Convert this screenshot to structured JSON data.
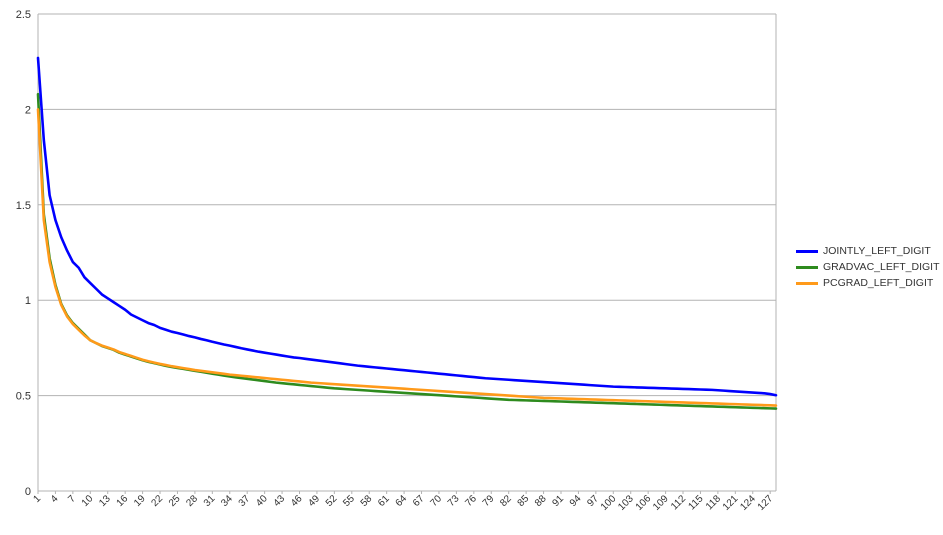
{
  "chart_data": {
    "type": "line",
    "title": "",
    "xlabel": "",
    "ylabel": "",
    "ylim": [
      0,
      2.5
    ],
    "yticks": [
      "0",
      "0.5",
      "1",
      "1.5",
      "2",
      "2.5"
    ],
    "x_start": 1,
    "x_end": 128,
    "x_tick_labels": [
      "1",
      "4",
      "7",
      "10",
      "13",
      "16",
      "19",
      "22",
      "25",
      "28",
      "31",
      "34",
      "37",
      "40",
      "43",
      "46",
      "49",
      "52",
      "55",
      "58",
      "61",
      "64",
      "67",
      "70",
      "73",
      "76",
      "79",
      "82",
      "85",
      "88",
      "91",
      "94",
      "97",
      "100",
      "103",
      "106",
      "109",
      "112",
      "115",
      "118",
      "121",
      "124",
      "127"
    ],
    "grid": true,
    "legend_position": "right",
    "series": [
      {
        "name": "JOINTLY_LEFT_DIGIT",
        "color": "#0000ff",
        "values": [
          2.27,
          1.84,
          1.55,
          1.42,
          1.33,
          1.26,
          1.2,
          1.17,
          1.12,
          1.09,
          1.06,
          1.03,
          1.01,
          0.99,
          0.97,
          0.95,
          0.925,
          0.91,
          0.895,
          0.88,
          0.87,
          0.855,
          0.845,
          0.835,
          0.828,
          0.82,
          0.812,
          0.805,
          0.797,
          0.79,
          0.782,
          0.775,
          0.768,
          0.762,
          0.755,
          0.748,
          0.742,
          0.736,
          0.73,
          0.725,
          0.72,
          0.715,
          0.71,
          0.705,
          0.7,
          0.697,
          0.693,
          0.689,
          0.685,
          0.681,
          0.677,
          0.673,
          0.669,
          0.665,
          0.661,
          0.657,
          0.654,
          0.651,
          0.648,
          0.645,
          0.642,
          0.639,
          0.636,
          0.633,
          0.63,
          0.627,
          0.624,
          0.621,
          0.618,
          0.615,
          0.612,
          0.609,
          0.606,
          0.603,
          0.6,
          0.597,
          0.594,
          0.591,
          0.589,
          0.587,
          0.585,
          0.583,
          0.581,
          0.579,
          0.577,
          0.575,
          0.573,
          0.571,
          0.569,
          0.567,
          0.565,
          0.563,
          0.561,
          0.559,
          0.557,
          0.555,
          0.553,
          0.551,
          0.549,
          0.547,
          0.546,
          0.545,
          0.544,
          0.543,
          0.542,
          0.541,
          0.54,
          0.539,
          0.538,
          0.537,
          0.536,
          0.535,
          0.534,
          0.533,
          0.532,
          0.531,
          0.53,
          0.528,
          0.526,
          0.524,
          0.522,
          0.52,
          0.518,
          0.516,
          0.514,
          0.512,
          0.508,
          0.502
        ]
      },
      {
        "name": "GRADVAC_LEFT_DIGIT",
        "color": "#2e8b1e",
        "values": [
          2.08,
          1.45,
          1.22,
          1.08,
          0.98,
          0.92,
          0.88,
          0.85,
          0.82,
          0.79,
          0.775,
          0.76,
          0.75,
          0.74,
          0.725,
          0.715,
          0.705,
          0.695,
          0.685,
          0.677,
          0.67,
          0.663,
          0.656,
          0.65,
          0.645,
          0.64,
          0.635,
          0.63,
          0.625,
          0.62,
          0.615,
          0.61,
          0.605,
          0.6,
          0.596,
          0.592,
          0.588,
          0.584,
          0.58,
          0.576,
          0.572,
          0.568,
          0.565,
          0.562,
          0.559,
          0.556,
          0.553,
          0.55,
          0.547,
          0.544,
          0.541,
          0.538,
          0.536,
          0.534,
          0.532,
          0.53,
          0.528,
          0.526,
          0.524,
          0.522,
          0.52,
          0.518,
          0.516,
          0.514,
          0.512,
          0.51,
          0.508,
          0.506,
          0.504,
          0.502,
          0.5,
          0.498,
          0.496,
          0.494,
          0.492,
          0.49,
          0.488,
          0.486,
          0.484,
          0.482,
          0.48,
          0.478,
          0.477,
          0.476,
          0.475,
          0.474,
          0.473,
          0.472,
          0.471,
          0.47,
          0.469,
          0.468,
          0.467,
          0.466,
          0.465,
          0.464,
          0.463,
          0.462,
          0.461,
          0.46,
          0.459,
          0.458,
          0.457,
          0.456,
          0.455,
          0.454,
          0.453,
          0.452,
          0.451,
          0.45,
          0.449,
          0.448,
          0.447,
          0.446,
          0.445,
          0.444,
          0.443,
          0.442,
          0.441,
          0.44,
          0.439,
          0.438,
          0.437,
          0.436,
          0.435,
          0.434,
          0.433,
          0.432
        ]
      },
      {
        "name": "PCGRAD_LEFT_DIGIT",
        "color": "#ff9a1a",
        "values": [
          2.0,
          1.42,
          1.2,
          1.07,
          0.975,
          0.915,
          0.875,
          0.845,
          0.815,
          0.79,
          0.775,
          0.762,
          0.752,
          0.742,
          0.728,
          0.718,
          0.708,
          0.698,
          0.688,
          0.68,
          0.673,
          0.666,
          0.66,
          0.654,
          0.649,
          0.644,
          0.639,
          0.634,
          0.63,
          0.626,
          0.622,
          0.618,
          0.614,
          0.61,
          0.607,
          0.604,
          0.601,
          0.598,
          0.595,
          0.592,
          0.589,
          0.586,
          0.583,
          0.58,
          0.577,
          0.574,
          0.571,
          0.568,
          0.566,
          0.564,
          0.562,
          0.56,
          0.558,
          0.556,
          0.554,
          0.552,
          0.55,
          0.548,
          0.546,
          0.544,
          0.542,
          0.54,
          0.538,
          0.536,
          0.534,
          0.532,
          0.53,
          0.528,
          0.526,
          0.524,
          0.522,
          0.52,
          0.518,
          0.516,
          0.514,
          0.512,
          0.51,
          0.508,
          0.506,
          0.504,
          0.502,
          0.5,
          0.498,
          0.496,
          0.494,
          0.492,
          0.49,
          0.488,
          0.487,
          0.486,
          0.485,
          0.484,
          0.483,
          0.482,
          0.481,
          0.48,
          0.479,
          0.478,
          0.477,
          0.476,
          0.475,
          0.474,
          0.473,
          0.472,
          0.471,
          0.47,
          0.469,
          0.468,
          0.467,
          0.466,
          0.465,
          0.464,
          0.463,
          0.462,
          0.461,
          0.46,
          0.459,
          0.458,
          0.457,
          0.456,
          0.455,
          0.454,
          0.453,
          0.452,
          0.451,
          0.45,
          0.449,
          0.448
        ]
      }
    ]
  }
}
